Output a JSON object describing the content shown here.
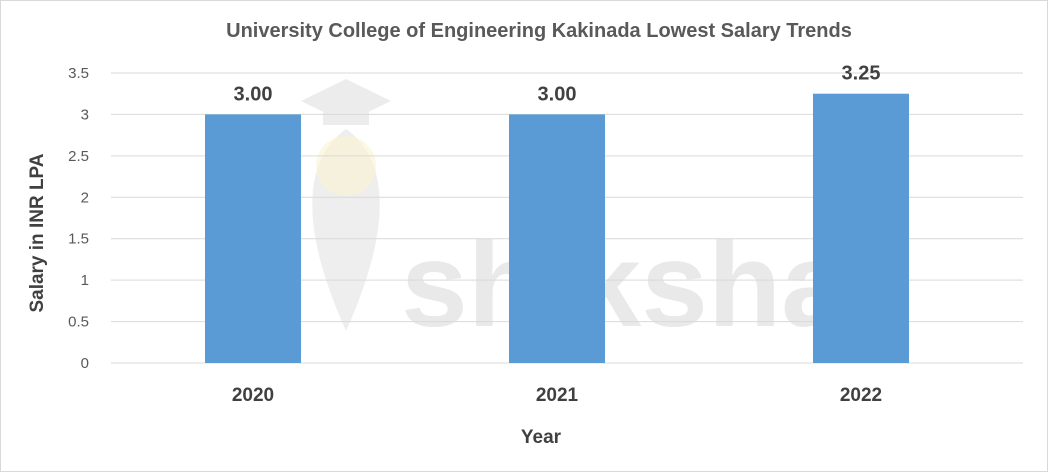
{
  "chart_data": {
    "type": "bar",
    "title": "University College of Engineering Kakinada Lowest Salary Trends",
    "categories": [
      "2020",
      "2021",
      "2022"
    ],
    "values": [
      3.0,
      3.0,
      3.25
    ],
    "data_labels": [
      "3.00",
      "3.00",
      "3.25"
    ],
    "xlabel": "Year",
    "ylabel": "Salary in INR LPA",
    "ylim": [
      0,
      3.5
    ],
    "yticks": [
      "0",
      "0.5",
      "1",
      "1.5",
      "2",
      "2.5",
      "3",
      "3.5"
    ],
    "grid": true,
    "legend": "none",
    "bar_color": "#5b9bd5",
    "gridline_color": "#d9d9d9"
  },
  "watermark": {
    "text": "shiksha",
    "icon": "graduation-cap-icon"
  }
}
